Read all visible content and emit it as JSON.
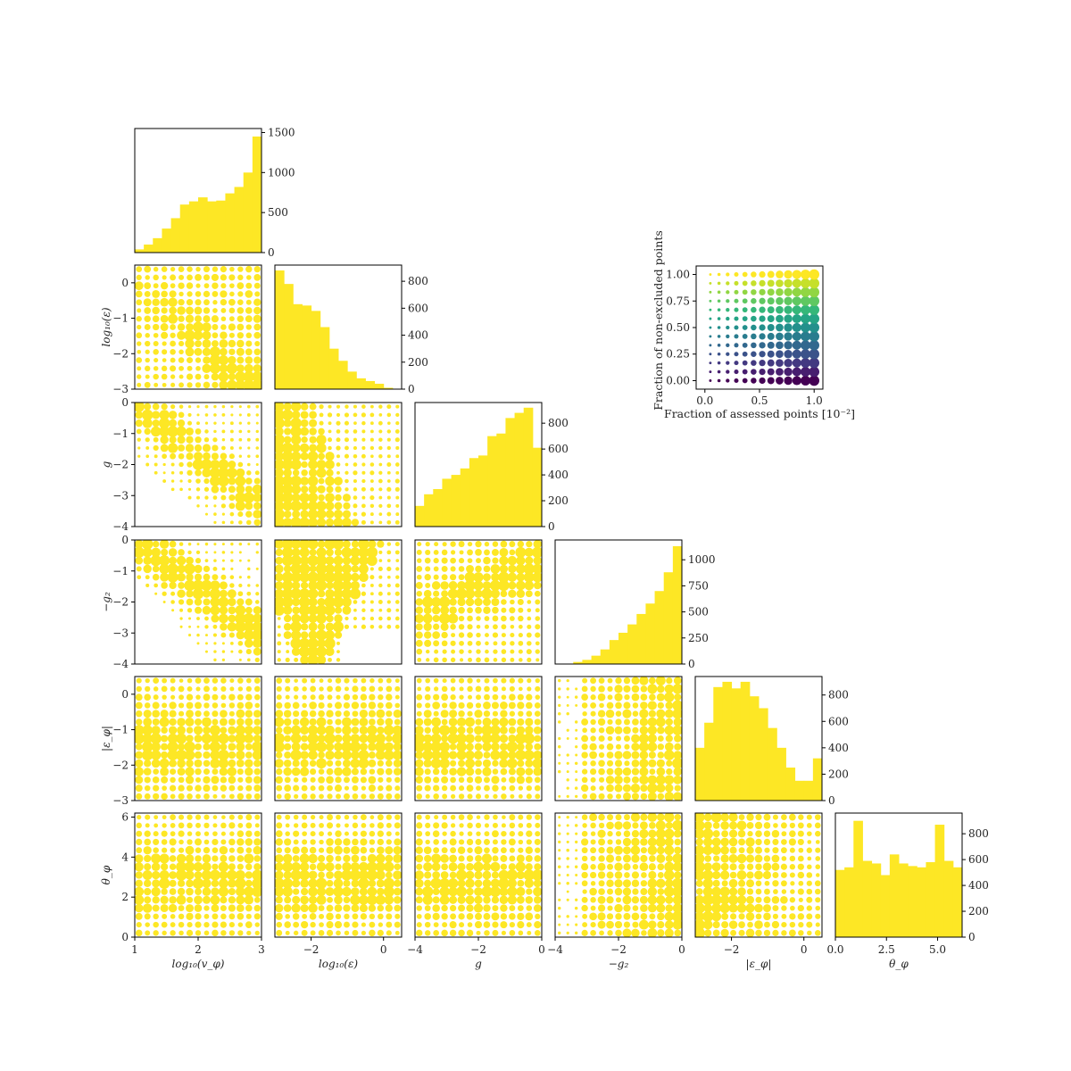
{
  "chart_data": {
    "type": "corner-plot",
    "colors": {
      "fill": "#fde725",
      "frame": "#000000"
    },
    "variables": [
      {
        "name": "log10_v_phi",
        "label": "log₁₀(v_φ)",
        "range": [
          1,
          3
        ],
        "ticks": [
          1,
          2,
          3
        ],
        "tick_labels": [
          "1",
          "2",
          "3"
        ]
      },
      {
        "name": "log10_epsilon",
        "label": "log₁₀(ε)",
        "range": [
          -3,
          0.5
        ],
        "ticks": [
          -2,
          0
        ],
        "tick_labels": [
          "−2",
          "0"
        ],
        "row_ticks": [
          -3,
          -2,
          -1,
          0
        ],
        "row_tick_labels": [
          "−3",
          "−2",
          "−1",
          "0"
        ]
      },
      {
        "name": "g",
        "label": "g",
        "range": [
          -4,
          0
        ],
        "ticks": [
          -4,
          -2,
          0
        ],
        "tick_labels": [
          "−4",
          "−2",
          "0"
        ],
        "row_ticks": [
          -4,
          -3,
          -2,
          -1,
          0
        ],
        "row_tick_labels": [
          "−4",
          "−3",
          "−2",
          "−1",
          "0"
        ]
      },
      {
        "name": "neg_g2",
        "label": "−g₂",
        "range": [
          -4,
          0
        ],
        "ticks": [
          -4,
          -2,
          0
        ],
        "tick_labels": [
          "−4",
          "−2",
          "0"
        ],
        "row_ticks": [
          -4,
          -3,
          -2,
          -1,
          0
        ],
        "row_tick_labels": [
          "−4",
          "−3",
          "−2",
          "−1",
          "0"
        ]
      },
      {
        "name": "abs_eps_phi",
        "label": "|ε_φ|",
        "range": [
          -3,
          0.5
        ],
        "ticks": [
          -2,
          0
        ],
        "tick_labels": [
          "−2",
          "0"
        ],
        "row_ticks": [
          -3,
          -2,
          -1,
          0
        ],
        "row_tick_labels": [
          "−3",
          "−2",
          "−1",
          "0"
        ]
      },
      {
        "name": "theta_phi",
        "label": "θ_φ",
        "range": [
          0,
          6.2
        ],
        "ticks": [
          0,
          2.5,
          5
        ],
        "tick_labels": [
          "0.0",
          "2.5",
          "5.0"
        ],
        "row_ticks": [
          0,
          2,
          4,
          6
        ],
        "row_tick_labels": [
          "0",
          "2",
          "4",
          "6"
        ]
      }
    ],
    "histograms": [
      {
        "variable": "log10_v_phi",
        "counts": [
          40,
          100,
          180,
          300,
          430,
          600,
          640,
          690,
          640,
          650,
          740,
          820,
          1000,
          1450
        ],
        "ylim": [
          0,
          1550
        ],
        "yticks": [
          0,
          500,
          1000,
          1500
        ]
      },
      {
        "variable": "log10_epsilon",
        "counts": [
          880,
          780,
          630,
          620,
          580,
          460,
          300,
          210,
          130,
          80,
          60,
          40,
          10,
          0
        ],
        "ylim": [
          0,
          920
        ],
        "yticks": [
          0,
          200,
          400,
          600,
          800
        ]
      },
      {
        "variable": "g",
        "counts": [
          160,
          250,
          290,
          370,
          400,
          450,
          530,
          550,
          700,
          720,
          840,
          880,
          920,
          610
        ],
        "ylim": [
          0,
          960
        ],
        "yticks": [
          0,
          200,
          400,
          600,
          800
        ]
      },
      {
        "variable": "neg_g2",
        "counts": [
          0,
          0,
          20,
          40,
          80,
          140,
          230,
          300,
          380,
          480,
          580,
          700,
          880,
          1130
        ],
        "ylim": [
          0,
          1190
        ],
        "yticks": [
          0,
          250,
          500,
          750,
          1000
        ]
      },
      {
        "variable": "abs_eps_phi",
        "counts": [
          400,
          590,
          860,
          900,
          850,
          900,
          790,
          700,
          550,
          400,
          250,
          150,
          150,
          320
        ],
        "ylim": [
          0,
          940
        ],
        "yticks": [
          0,
          200,
          400,
          600,
          800
        ]
      },
      {
        "variable": "theta_phi",
        "counts": [
          520,
          540,
          900,
          590,
          570,
          480,
          640,
          570,
          550,
          540,
          580,
          870,
          590,
          540
        ],
        "ylim": [
          0,
          960
        ],
        "yticks": [
          0,
          200,
          400,
          600,
          800
        ]
      }
    ],
    "legend": {
      "xlabel": "Fraction of assessed points [10⁻²]",
      "ylabel": "Fraction of non-excluded points",
      "xlim": [
        -0.08,
        1.08
      ],
      "ylim": [
        -0.08,
        1.08
      ],
      "xticks": [
        0.0,
        0.5,
        1.0
      ],
      "xtick_labels": [
        "0.0",
        "0.5",
        "1.0"
      ],
      "yticks": [
        0.0,
        0.25,
        0.5,
        0.75,
        1.0
      ],
      "ytick_labels": [
        "0.00",
        "0.25",
        "0.50",
        "0.75",
        "1.00"
      ],
      "grid_steps": 13,
      "colormap": "viridis"
    }
  }
}
